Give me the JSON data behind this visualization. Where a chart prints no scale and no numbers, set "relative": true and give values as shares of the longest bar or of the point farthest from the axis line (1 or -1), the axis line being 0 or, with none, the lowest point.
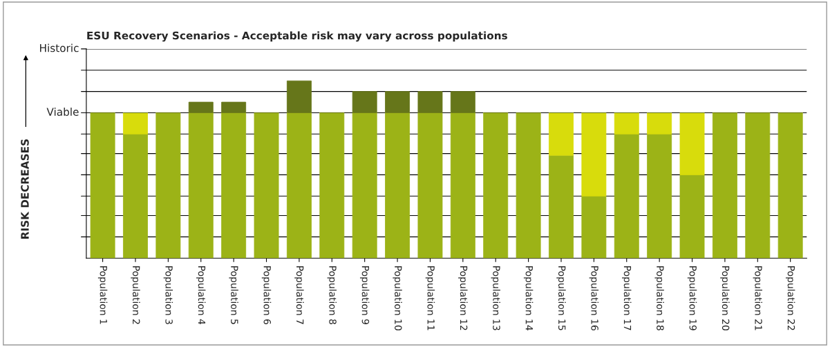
{
  "chart_data": {
    "type": "bar",
    "title": "ESU Recovery Scenarios - Acceptable risk may vary across populations",
    "annotations": [
      "RISK DECREASES"
    ],
    "categories": [
      "Population 1",
      "Population 2",
      "Population 3",
      "Population 4",
      "Population 5",
      "Population 6",
      "Population 7",
      "Population 8",
      "Population 9",
      "Population 10",
      "Population 11",
      "Population 12",
      "Population 13",
      "Population 14",
      "Population 15",
      "Population 16",
      "Population 17",
      "Population 18",
      "Population 19",
      "Population 20",
      "Population 21",
      "Population 22"
    ],
    "stacked": true,
    "relative": true,
    "series": [
      {
        "color": "#9cb317",
        "values": [
          0.82,
          0.7,
          0.82,
          0.82,
          0.82,
          0.82,
          0.82,
          0.82,
          0.82,
          0.82,
          0.82,
          0.82,
          0.82,
          0.82,
          0.58,
          0.35,
          0.7,
          0.7,
          0.47,
          0.82,
          0.82,
          0.82
        ]
      },
      {
        "color": "#d8dc0c",
        "values": [
          0,
          0.12,
          0,
          0,
          0,
          0,
          0,
          0,
          0,
          0,
          0,
          0,
          0,
          0,
          0.24,
          0.47,
          0.12,
          0.12,
          0.35,
          0,
          0,
          0
        ]
      },
      {
        "color": "#66761a",
        "values": [
          0,
          0,
          0,
          0.06,
          0.06,
          0,
          0.18,
          0,
          0.12,
          0.12,
          0.12,
          0.12,
          0,
          0,
          0,
          0,
          0,
          0,
          0,
          0,
          0,
          0
        ]
      }
    ],
    "ref_lines": [
      {
        "axis": "y",
        "value": 0.12,
        "label": null
      },
      {
        "axis": "y",
        "value": 0.24,
        "label": null
      },
      {
        "axis": "y",
        "value": 0.35,
        "label": null
      },
      {
        "axis": "y",
        "value": 0.47,
        "label": null
      },
      {
        "axis": "y",
        "value": 0.59,
        "label": null
      },
      {
        "axis": "y",
        "value": 0.7,
        "label": null
      },
      {
        "axis": "y",
        "value": 0.82,
        "label": "Viable"
      },
      {
        "axis": "y",
        "value": 0.94,
        "label": null
      },
      {
        "axis": "y",
        "value": 1.06,
        "label": null
      },
      {
        "axis": "y",
        "value": 1.18,
        "label": "Historic"
      }
    ]
  }
}
